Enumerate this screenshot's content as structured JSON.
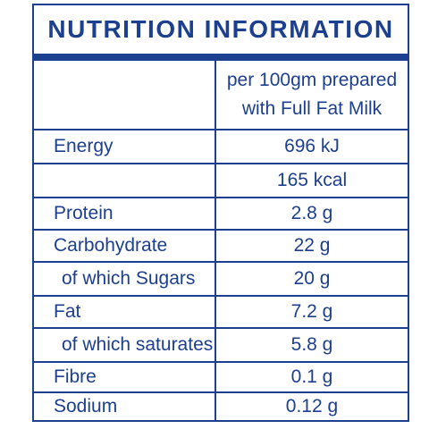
{
  "title": "NUTRITION INFORMATION",
  "header": {
    "label": "",
    "value_line1": "per 100gm prepared",
    "value_line2": "with Full Fat Milk"
  },
  "rows": [
    {
      "label": "Energy",
      "value": "696 kJ"
    },
    {
      "label": "",
      "value": "165 kcal"
    },
    {
      "label": "Protein",
      "value": "2.8 g"
    },
    {
      "label": "Carbohydrate",
      "value": "22 g"
    },
    {
      "label": "of which Sugars",
      "value": "20 g"
    },
    {
      "label": "Fat",
      "value": "7.2 g"
    },
    {
      "label": "of which saturates",
      "value": "5.8 g"
    },
    {
      "label": "Fibre",
      "value": "0.1 g"
    },
    {
      "label": "Sodium",
      "value": "0.12 g"
    }
  ],
  "colors": {
    "brand_blue": "#1d3f8f",
    "background": "#ffffff"
  }
}
